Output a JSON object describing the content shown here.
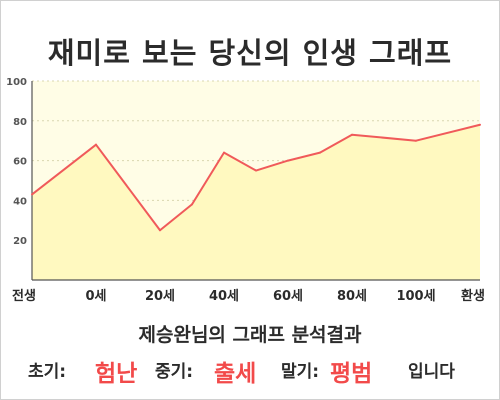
{
  "chart_data": {
    "type": "area",
    "title": "재미로 보는 당신의 인생 그래프",
    "x_labels": [
      "전생",
      "0세",
      "20세",
      "40세",
      "60세",
      "80세",
      "100세",
      "환생"
    ],
    "points": [
      {
        "age": -20,
        "value": 43
      },
      {
        "age": 0,
        "value": 68
      },
      {
        "age": 20,
        "value": 25
      },
      {
        "age": 30,
        "value": 38
      },
      {
        "age": 40,
        "value": 64
      },
      {
        "age": 50,
        "value": 55
      },
      {
        "age": 60,
        "value": 60
      },
      {
        "age": 70,
        "value": 64
      },
      {
        "age": 80,
        "value": 73
      },
      {
        "age": 100,
        "value": 70
      },
      {
        "age": 120,
        "value": 78
      }
    ],
    "y_ticks": [
      20,
      40,
      60,
      80,
      100
    ],
    "ylim": [
      0,
      100
    ],
    "xlim": [
      -20,
      120
    ],
    "grid": "horizontal-dotted",
    "line_color": "#f05a5a",
    "fill_color": "#fff9c0",
    "plot_bg": "#fffde6"
  },
  "result": {
    "title": "제승완님의 그래프 분석결과",
    "early_label": "초기:",
    "early_value": "험난",
    "mid_label": "중기:",
    "mid_value": "출세",
    "late_label": "말기:",
    "late_value": "평범",
    "tail": "입니다"
  }
}
